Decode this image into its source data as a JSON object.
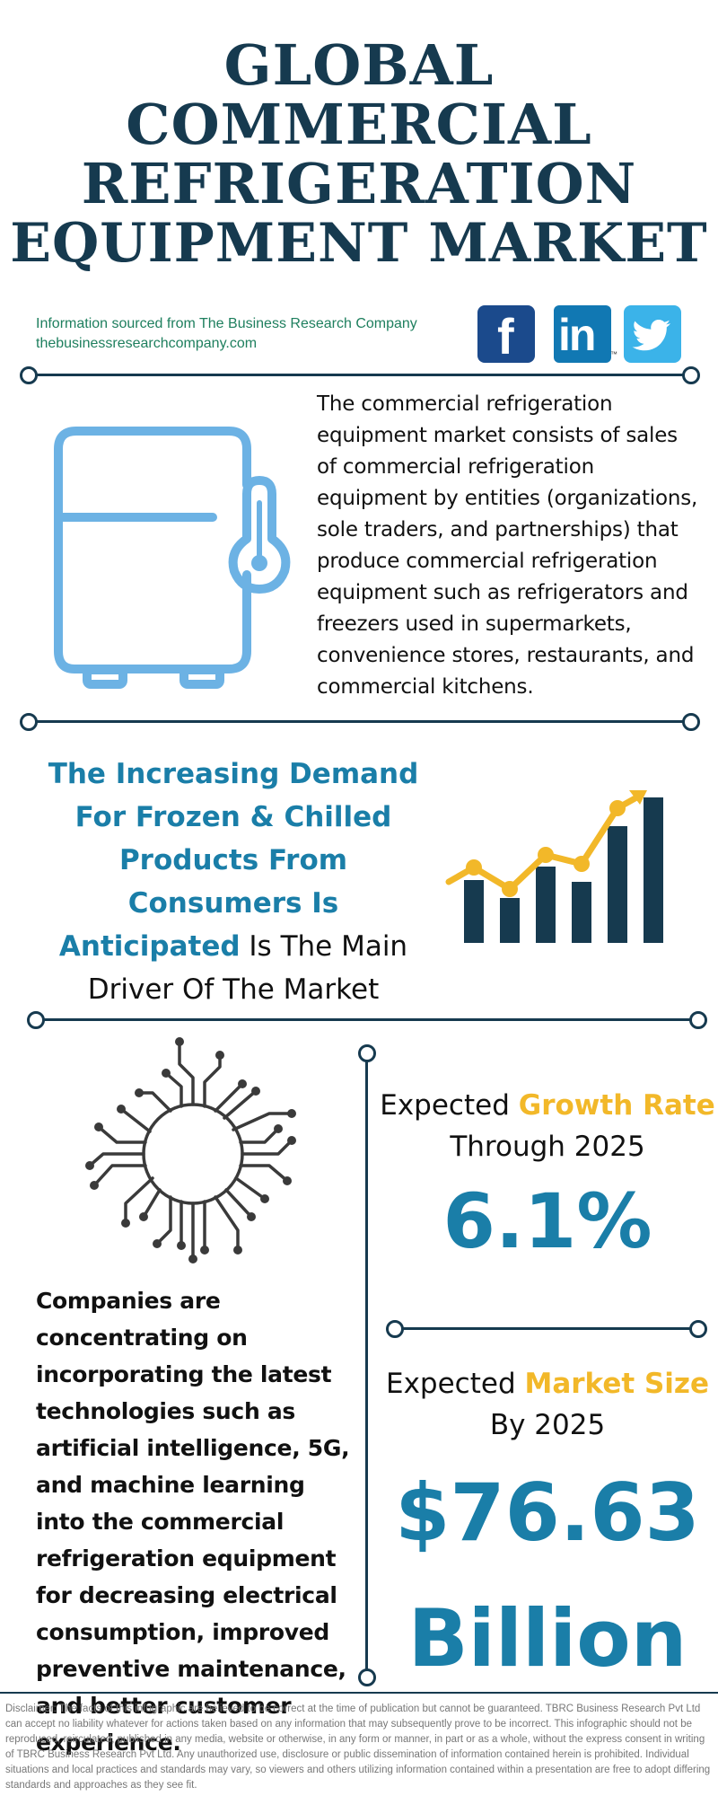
{
  "title": {
    "line1": "GLOBAL",
    "line2": "COMMERCIAL",
    "line3": "REFRIGERATION",
    "line4": "EQUIPMENT MARKET"
  },
  "source": {
    "line1": "Information sourced from The Business Research Company",
    "line2": "thebusinessresearchcompany.com"
  },
  "social": {
    "facebook_label": "f",
    "linkedin_label": "in",
    "linkedin_tm": "™"
  },
  "description": "The commercial refrigeration equipment market consists of sales of commercial refrigeration equipment by entities (organizations, sole traders, and partnerships) that produce commercial refrigeration equipment such as refrigerators and freezers used in supermarkets, convenience stores, restaurants, and commercial kitchens.",
  "driver": {
    "highlight": "The Increasing Demand For Frozen & Chilled Products From Consumers Is Anticipated",
    "rest": " Is The Main Driver Of The Market"
  },
  "companies_text": "Companies are concentrating on incorporating the latest technologies such as artificial intelligence, 5G, and machine learning into the commercial refrigeration equipment for decreasing electrical consumption, improved preventive maintenance, and better customer experience.",
  "growth": {
    "prefix": "Expected ",
    "highlight": "Growth Rate",
    "line2": "Through 2025",
    "value": "6.1%"
  },
  "market_size": {
    "prefix": "Expected ",
    "highlight": "Market Size",
    "line2": "By 2025",
    "value_line1": "$76.63",
    "value_line2": "Billion"
  },
  "disclaimer": "Disclaimer: The facts of this infographic are believed to be correct at the time of publication but cannot be guaranteed. TBRC Business Research Pvt Ltd can accept no liability whatever for actions taken based on any information that may subsequently prove to be incorrect. This infographic should not be reproduced, reirculated, published in any media, website or otherwise, in any form or manner, in part or as a whole, without the express consent in writing of TBRC Business Research Pvt Ltd. Any unauthorized use, disclosure or public dissemination of information contained herein is prohibited. Individual situations and local practices and standards may vary, so viewers and others utilizing information contained within a presentation are free to adopt differing standards and approaches as they see fit.",
  "colors": {
    "navy": "#163a4f",
    "teal_blue": "#1a7ea8",
    "gold": "#f2b829",
    "fridge_blue": "#6cb2e4",
    "source_green": "#1e7f5e"
  },
  "icons": [
    "refrigerator-icon",
    "bar-chart-growth-icon",
    "circuit-chip-icon",
    "facebook-icon",
    "linkedin-icon",
    "twitter-icon"
  ]
}
